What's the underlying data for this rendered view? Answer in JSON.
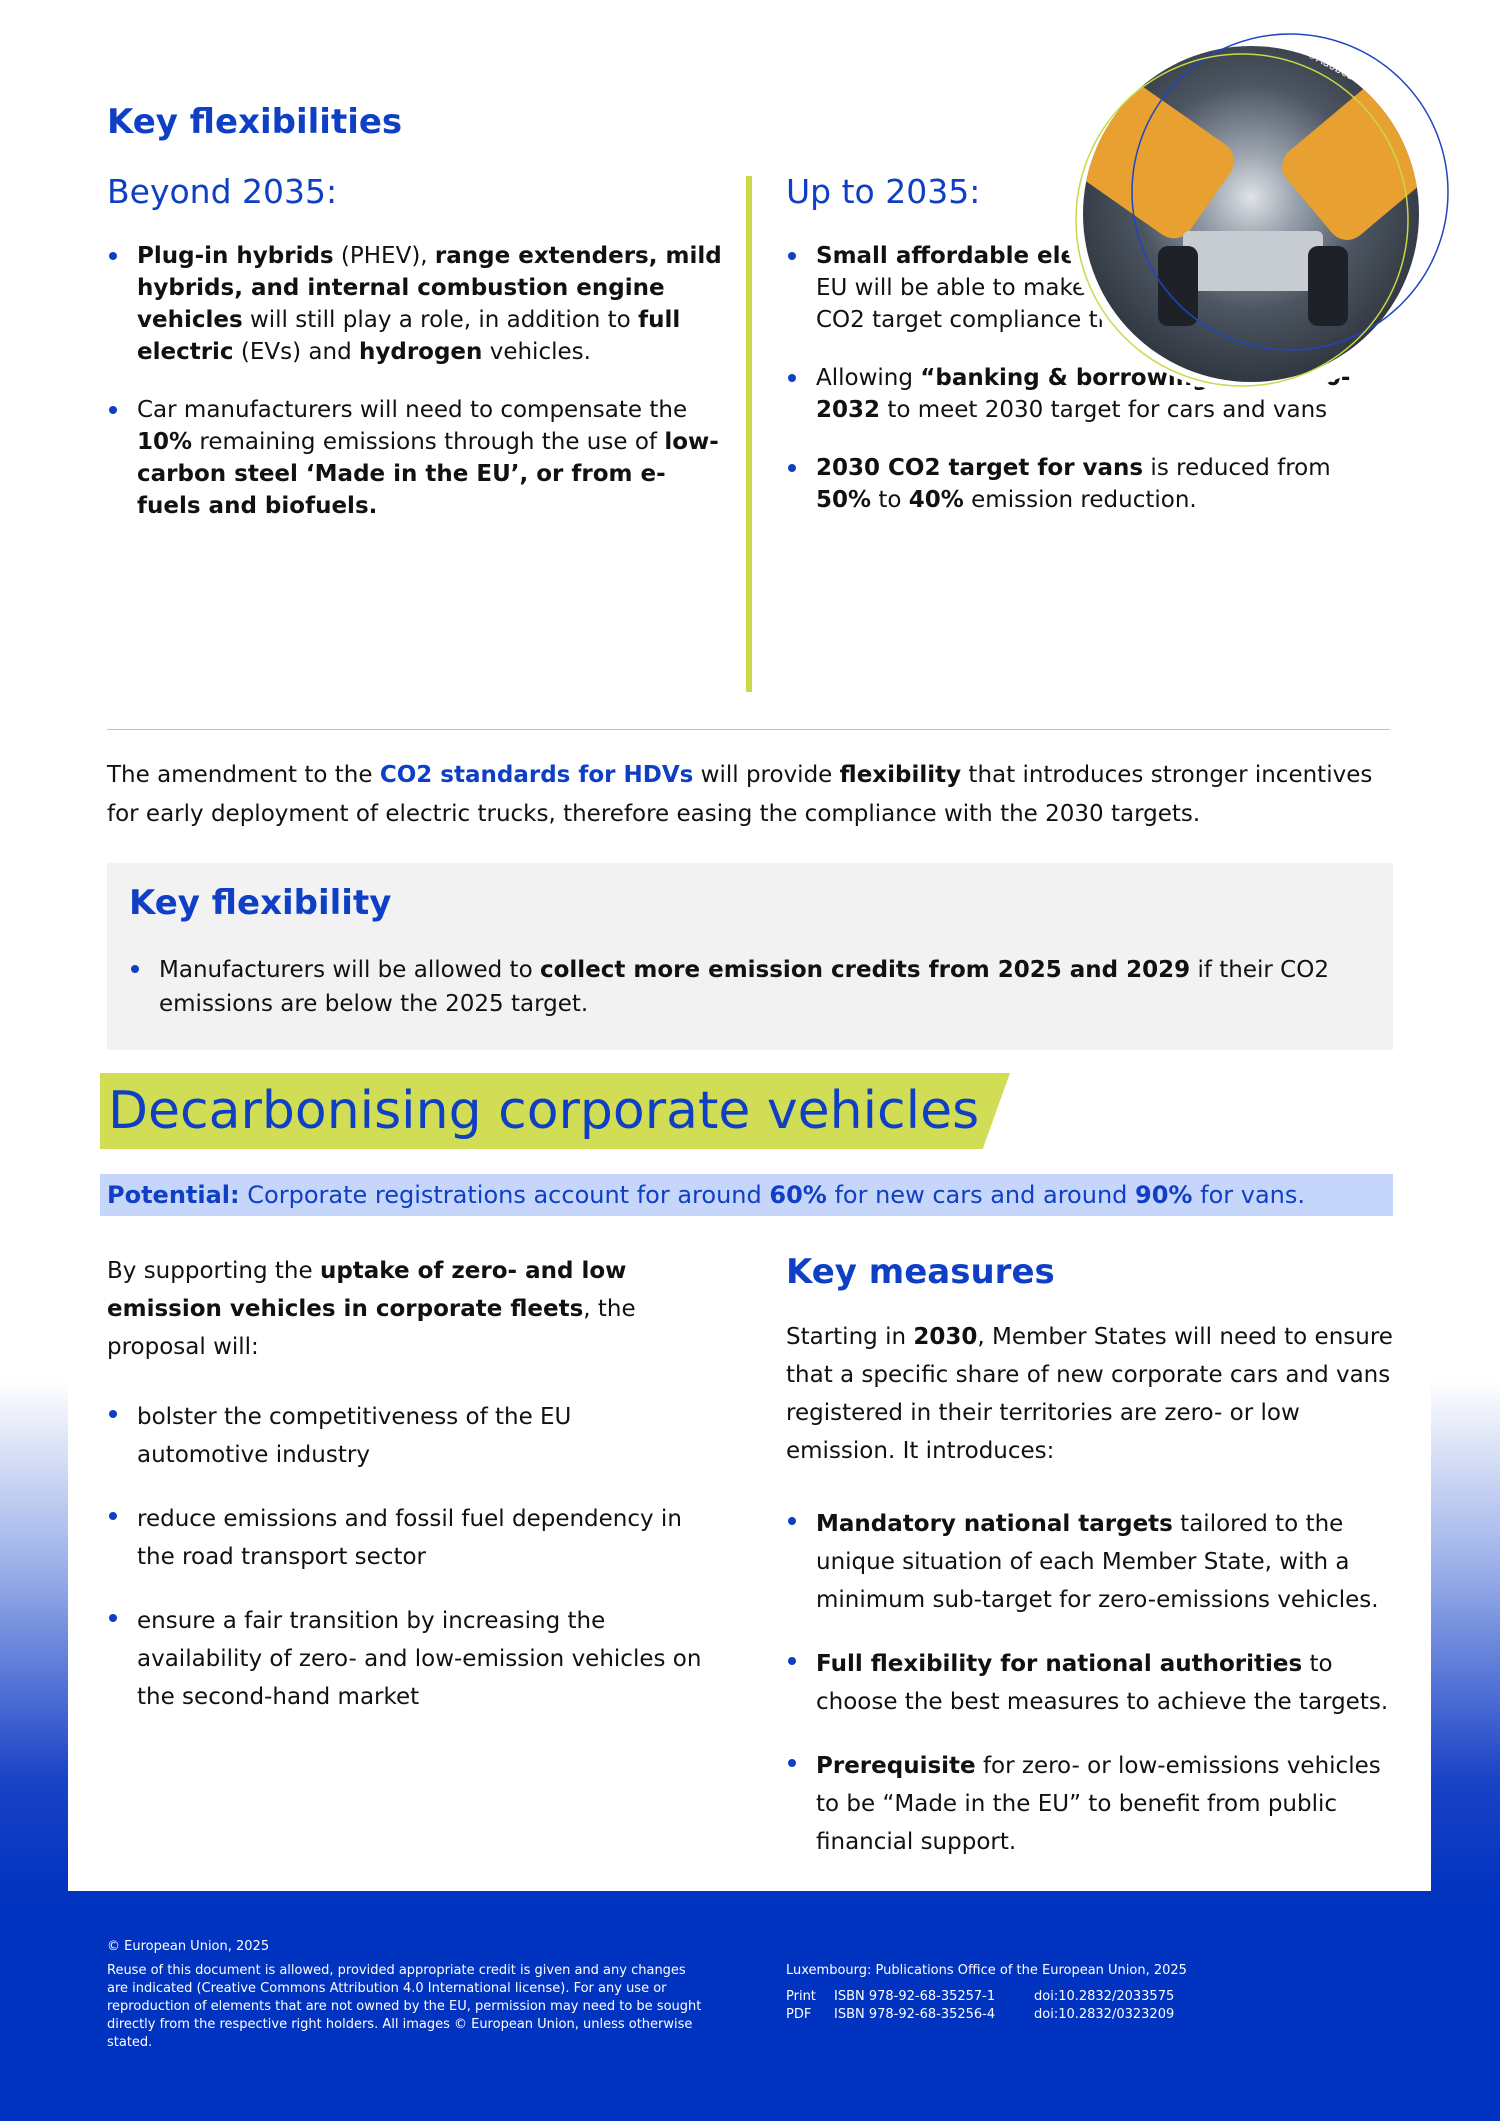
{
  "colors": {
    "accent_blue": "#0e3fc4",
    "accent_green": "#d0dd55",
    "footer_blue": "#0033c0",
    "potential_bg": "#c6d6fb"
  },
  "flex": {
    "title": "Key flexibilities",
    "beyond": {
      "heading": "Beyond 2035:",
      "bullets": [
        [
          {
            "t": "Plug-in hybrids",
            "b": true
          },
          {
            "t": " (PHEV), "
          },
          {
            "t": "range extenders, mild hybrids, and internal combustion engine vehicles",
            "b": true
          },
          {
            "t": " will still play a role, in addition to "
          },
          {
            "t": "full electric",
            "b": true
          },
          {
            "t": " (EVs) and "
          },
          {
            "t": "hydrogen",
            "b": true
          },
          {
            "t": " vehicles."
          }
        ],
        [
          {
            "t": "Car manufacturers will need to compensate the "
          },
          {
            "t": "10%",
            "b": true
          },
          {
            "t": " remaining emissions through the use of "
          },
          {
            "t": "low-carbon steel ‘Made in the EU’, or from e-fuels and biofuels.",
            "b": true
          }
        ]
      ]
    },
    "upto": {
      "heading": "Up to 2035:",
      "bullets": [
        [
          {
            "t": "Small affordable electric cars",
            "b": true
          },
          {
            "t": " made in the EU will be able to make a larger contribution to CO2 target compliance through “super-credits”."
          }
        ],
        [
          {
            "t": "Allowing "
          },
          {
            "t": "“banking & borrowing” for 2030- 2032",
            "b": true
          },
          {
            "t": " to meet 2030 target for cars and vans"
          }
        ],
        [
          {
            "t": "2030 CO2 target for vans",
            "b": true
          },
          {
            "t": " is reduced from "
          },
          {
            "t": "50%",
            "b": true
          },
          {
            "t": " to "
          },
          {
            "t": "40%",
            "b": true
          },
          {
            "t": " emission reduction."
          }
        ]
      ]
    },
    "image_credit": "©AdobeStock"
  },
  "hdv": [
    {
      "t": "The amendment to the "
    },
    {
      "t": "CO2 standards for HDVs",
      "b": true,
      "blue": true
    },
    {
      "t": " will provide "
    },
    {
      "t": "flexibility",
      "b": true
    },
    {
      "t": " that introduces stronger incentives for early deployment of electric trucks, therefore easing the compliance with the 2030 targets."
    }
  ],
  "key_flex": {
    "title": "Key flexibility",
    "bullets": [
      [
        {
          "t": "Manufacturers will be allowed to "
        },
        {
          "t": "collect more emission credits from 2025 and 2029",
          "b": true
        },
        {
          "t": " if their CO2 emissions are below the 2025 target."
        }
      ]
    ]
  },
  "corporate": {
    "title": "Decarbonising corporate vehicles",
    "potential": [
      {
        "t": "Potential:",
        "b": true
      },
      {
        "t": " Corporate registrations account for around "
      },
      {
        "t": "60%",
        "b": true
      },
      {
        "t": " for new cars and around "
      },
      {
        "t": "90%",
        "b": true
      },
      {
        "t": " for vans."
      }
    ],
    "intro": [
      {
        "t": "By supporting the "
      },
      {
        "t": "uptake of zero- and low emission vehicles in corporate fleets",
        "b": true
      },
      {
        "t": ", the proposal will:"
      }
    ],
    "bullets": [
      [
        {
          "t": "bolster the competitiveness of the EU automotive industry"
        }
      ],
      [
        {
          "t": "reduce emissions and fossil fuel dependency in the road transport sector"
        }
      ],
      [
        {
          "t": "ensure a fair transition by increasing the availability of zero- and low-emission vehicles on the second-hand market"
        }
      ]
    ],
    "measures": {
      "title": "Key measures",
      "intro": [
        {
          "t": "Starting in "
        },
        {
          "t": "2030",
          "b": true
        },
        {
          "t": ", Member States will need to ensure that a specific share of new corporate cars and vans registered in their territories are zero- or low emission. It introduces:"
        }
      ],
      "bullets": [
        [
          {
            "t": "Mandatory national targets",
            "b": true
          },
          {
            "t": " tailored to the unique situation of each Member State, with a minimum sub-target for zero-emissions vehicles."
          }
        ],
        [
          {
            "t": "Full flexibility for national authorities",
            "b": true
          },
          {
            "t": " to choose the best measures to achieve the targets."
          }
        ],
        [
          {
            "t": "Prerequisite",
            "b": true
          },
          {
            "t": " for zero- or low-emissions vehicles to be “Made in the EU” to benefit from public financial support."
          }
        ]
      ]
    }
  },
  "footer": {
    "copyright": "© European Union, 2025",
    "reuse": "Reuse of this document is allowed, provided appropriate credit is given and any changes are indicated (Creative Commons Attribution 4.0 International license). For any use or reproduction of elements that are not owned by the EU, permission may need to be sought directly from the respective right holders. All images © European Union, unless otherwise stated.",
    "publisher": "Luxembourg: Publications Office of the European Union, 2025",
    "editions": [
      {
        "format": "Print",
        "isbn": "ISBN 978-92-68-35257-1",
        "doi": "doi:10.2832/2033575"
      },
      {
        "format": "PDF",
        "isbn": "ISBN 978-92-68-35256-4",
        "doi": "doi:10.2832/0323209"
      }
    ]
  }
}
